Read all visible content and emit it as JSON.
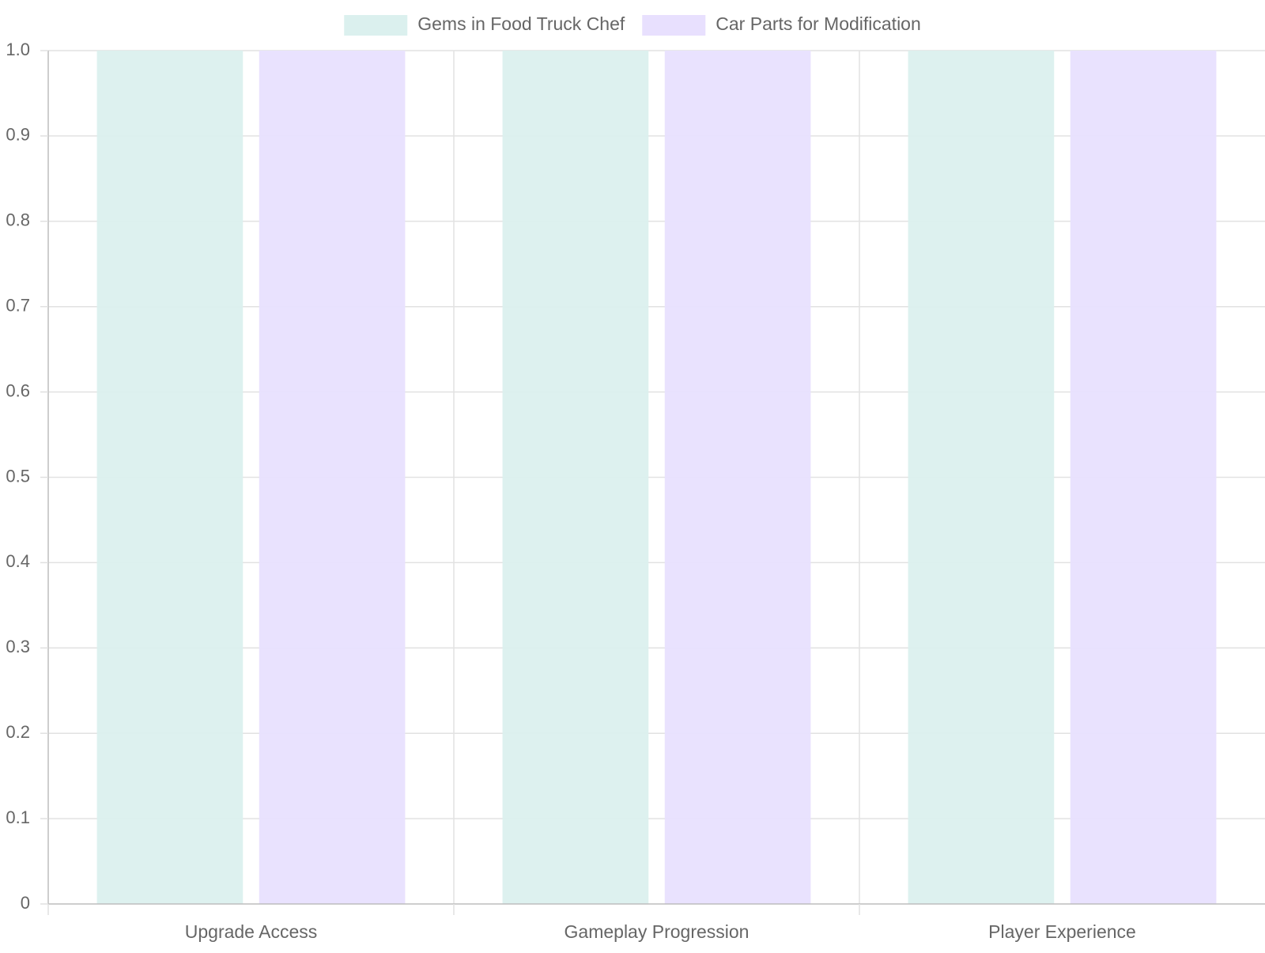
{
  "chart_data": {
    "type": "bar",
    "categories": [
      "Upgrade Access",
      "Gameplay Progression",
      "Player Experience"
    ],
    "series": [
      {
        "name": "Gems in Food Truck Chef",
        "values": [
          1.0,
          1.0,
          1.0
        ],
        "color": "#dbf0ee"
      },
      {
        "name": "Car Parts for Modification",
        "values": [
          1.0,
          1.0,
          1.0
        ],
        "color": "#e8e0fe"
      }
    ],
    "ylim": [
      0,
      1.0
    ],
    "yticks": [
      "0",
      "0.1",
      "0.2",
      "0.3",
      "0.4",
      "0.5",
      "0.6",
      "0.7",
      "0.8",
      "0.9",
      "1.0"
    ],
    "grid": true,
    "legend_position": "top-center",
    "xlabel": "",
    "ylabel": ""
  }
}
